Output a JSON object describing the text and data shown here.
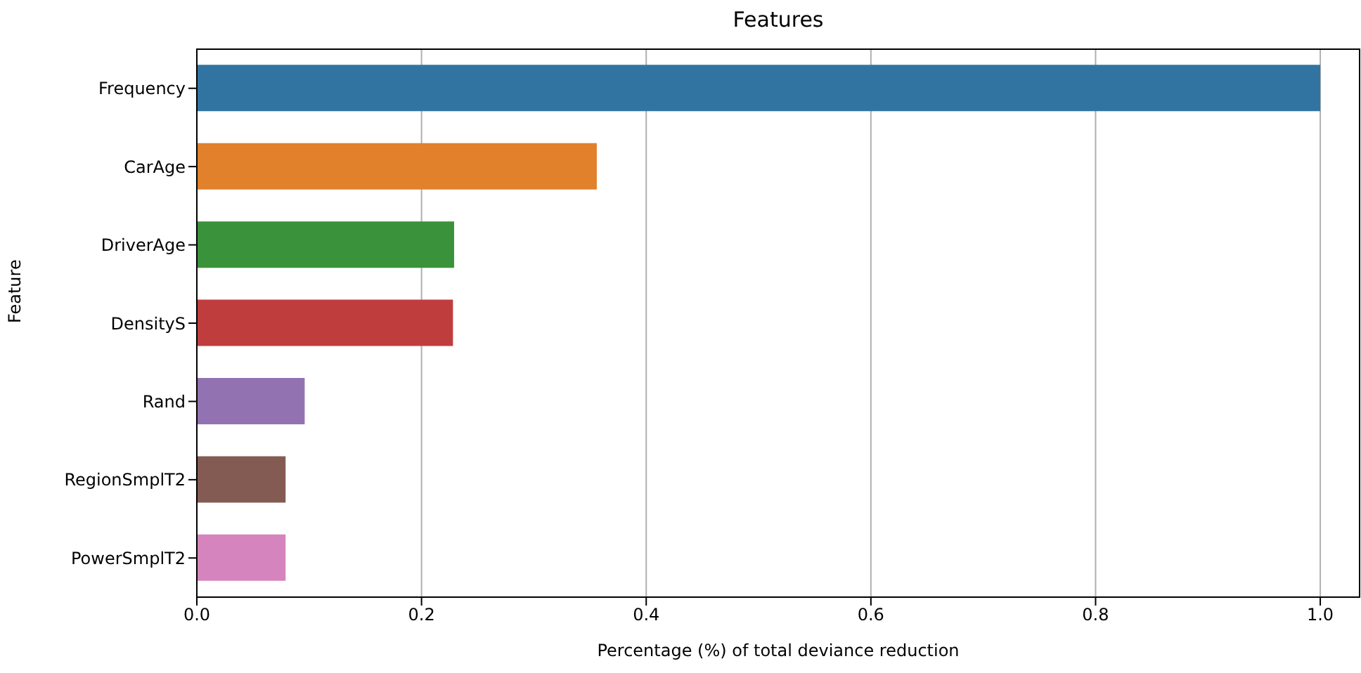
{
  "chart_data": {
    "type": "bar",
    "orientation": "horizontal",
    "title": "Features",
    "xlabel": "Percentage (%) of total deviance reduction",
    "ylabel": "Feature",
    "categories": [
      "Frequency",
      "CarAge",
      "DriverAge",
      "DensityS",
      "Rand",
      "RegionSmplT2",
      "PowerSmplT2"
    ],
    "values": [
      1.0,
      0.356,
      0.229,
      0.228,
      0.096,
      0.079,
      0.079
    ],
    "colors": [
      "#3274a1",
      "#e1812c",
      "#3a923a",
      "#c03d3e",
      "#9372b2",
      "#845b53",
      "#d684bd"
    ],
    "xlim": [
      0,
      1.035
    ],
    "xticks": [
      {
        "value": 0,
        "label": "0.0"
      },
      0.2,
      0.4,
      0.6,
      0.8,
      {
        "value": 1,
        "label": "1.0"
      }
    ],
    "grid": "x"
  }
}
